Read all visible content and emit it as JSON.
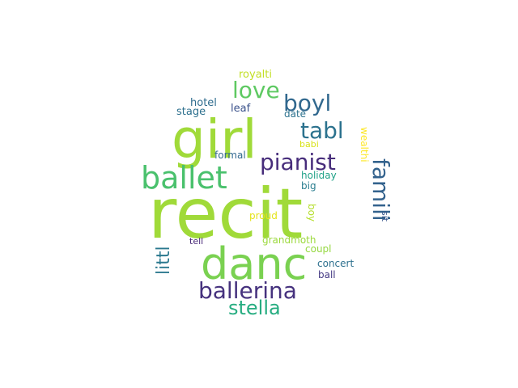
{
  "words": [
    {
      "text": "recit",
      "color": "#a0da39"
    },
    {
      "text": "girl",
      "color": "#a0da39"
    },
    {
      "text": "danc",
      "color": "#7ad151"
    },
    {
      "text": "ballet",
      "color": "#4ac16d"
    },
    {
      "text": "ballerina",
      "color": "#46327e"
    },
    {
      "text": "stella",
      "color": "#27ad81"
    },
    {
      "text": "pianist",
      "color": "#472d7b"
    },
    {
      "text": "love",
      "color": "#5ec962"
    },
    {
      "text": "boyl",
      "color": "#31688e"
    },
    {
      "text": "tabl",
      "color": "#2c728e"
    },
    {
      "text": "famili",
      "color": "#33628d"
    },
    {
      "text": "littl",
      "color": "#2a788e"
    },
    {
      "text": "royalti",
      "color": "#c2df23"
    },
    {
      "text": "hotel",
      "color": "#2f6c8e"
    },
    {
      "text": "stage",
      "color": "#2d708e"
    },
    {
      "text": "leaf",
      "color": "#3b528b"
    },
    {
      "text": "date",
      "color": "#2c728e"
    },
    {
      "text": "babi",
      "color": "#d8e219"
    },
    {
      "text": "formal",
      "color": "#31688e"
    },
    {
      "text": "wealthi",
      "color": "#fde725"
    },
    {
      "text": "holiday",
      "color": "#1fa187"
    },
    {
      "text": "big",
      "color": "#287c8e"
    },
    {
      "text": "proud",
      "color": "#e5e419"
    },
    {
      "text": "boy",
      "color": "#b5de2b"
    },
    {
      "text": "sit",
      "color": "#39568c"
    },
    {
      "text": "tell",
      "color": "#482878"
    },
    {
      "text": "grandmoth",
      "color": "#9bd93c"
    },
    {
      "text": "coupl",
      "color": "#95d840"
    },
    {
      "text": "concert",
      "color": "#2d708e"
    },
    {
      "text": "ball",
      "color": "#443983"
    }
  ]
}
